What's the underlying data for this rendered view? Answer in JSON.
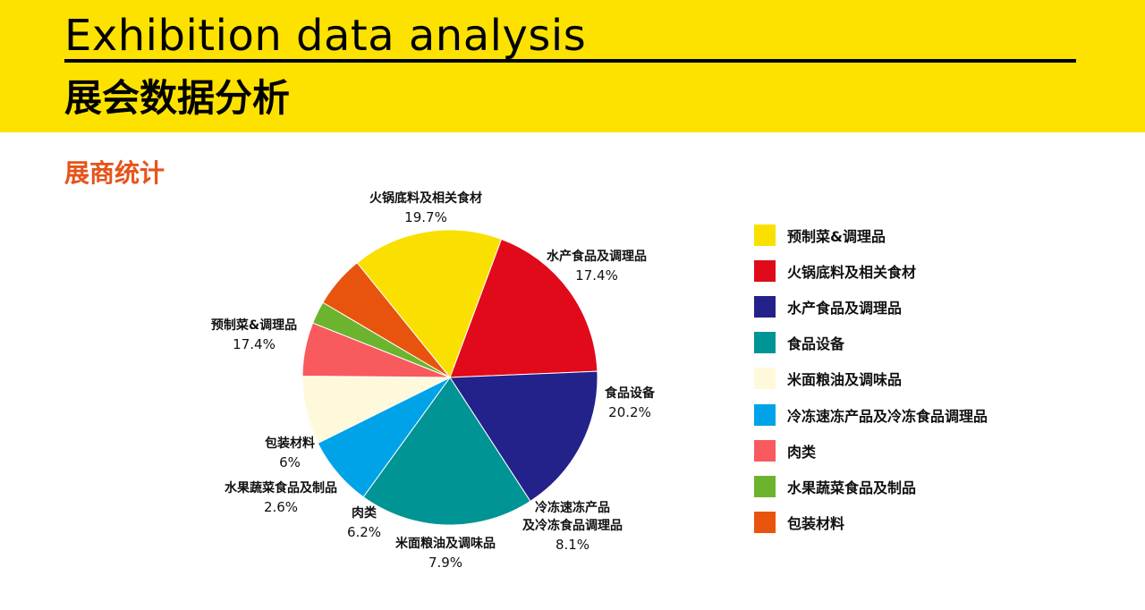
{
  "header": {
    "title_en": "Exhibition data analysis",
    "title_zh": "展会数据分析"
  },
  "section": {
    "title": "展商统计"
  },
  "chart_data": {
    "type": "pie",
    "categories": [
      "预制菜&调理品",
      "火锅底料及相关食材",
      "水产食品及调理品",
      "食品设备",
      "米面粮油及调味品",
      "冷冻速冻产品及冷冻食品调理品",
      "肉类",
      "水果蔬菜食品及制品",
      "包装材料"
    ],
    "values": [
      17.4,
      19.7,
      17.4,
      20.2,
      7.9,
      8.1,
      6.2,
      2.6,
      6
    ],
    "value_labels": [
      "17.4%",
      "19.7%",
      "17.4%",
      "20.2%",
      "7.9%",
      "8.1%",
      "6.2%",
      "2.6%",
      "6%"
    ],
    "slice_labels": [
      [
        "预制菜&调理品"
      ],
      [
        "火锅底料及相关食材"
      ],
      [
        "水产食品及调理品"
      ],
      [
        "食品设备"
      ],
      [
        "米面粮油及调味品"
      ],
      [
        "冷冻速冻产品",
        "及冷冻食品调理品"
      ],
      [
        "肉类"
      ],
      [
        "水果蔬菜食品及制品"
      ],
      [
        "包装材料"
      ]
    ],
    "colors": [
      "#F9E000",
      "#E10A1B",
      "#22228A",
      "#009494",
      "#FFF9DC",
      "#00A3E8",
      "#F85A5E",
      "#6CB42E",
      "#E8540D"
    ],
    "draw_order": [
      1,
      2,
      3,
      5,
      4,
      6,
      7,
      8,
      0
    ],
    "legend_position": "right"
  }
}
